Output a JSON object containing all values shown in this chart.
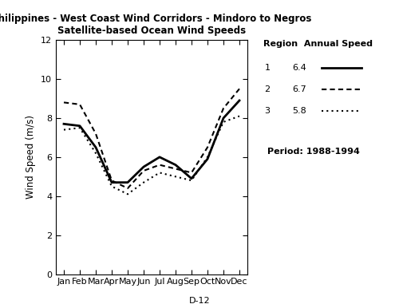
{
  "title_line1": "Philippines - West Coast Wind Corridors - Mindoro to Negros",
  "title_line2": "Satellite-based Ocean Wind Speeds",
  "ylabel": "Wind Speed (m/s)",
  "months": [
    "Jan",
    "Feb",
    "Mar",
    "Apr",
    "May",
    "Jun",
    "Jul",
    "Aug",
    "Sep",
    "Oct",
    "Nov",
    "Dec"
  ],
  "region1": [
    7.7,
    7.6,
    6.5,
    4.7,
    4.7,
    5.5,
    6.0,
    5.6,
    4.9,
    5.9,
    8.0,
    8.9
  ],
  "region2": [
    8.8,
    8.7,
    7.2,
    4.8,
    4.4,
    5.3,
    5.6,
    5.4,
    5.2,
    6.5,
    8.5,
    9.5
  ],
  "region3": [
    7.4,
    7.5,
    6.2,
    4.5,
    4.1,
    4.7,
    5.2,
    5.0,
    4.8,
    6.0,
    7.8,
    8.1
  ],
  "region1_label": "1",
  "region2_label": "2",
  "region3_label": "3",
  "region1_speed": "6.4",
  "region2_speed": "6.7",
  "region3_speed": "5.8",
  "period": "Period: 1988-1994",
  "page_label": "D-12",
  "ylim": [
    0,
    12
  ],
  "yticks": [
    0,
    2,
    4,
    6,
    8,
    10,
    12
  ],
  "linewidth1": 2.0,
  "linewidth2": 1.5,
  "linewidth3": 1.5,
  "dashes2": [
    3,
    2
  ],
  "dashes3": [
    1,
    2
  ]
}
